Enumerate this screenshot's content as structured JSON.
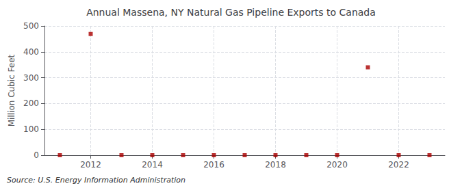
{
  "chart_data": {
    "type": "scatter",
    "title": "Annual Massena, NY Natural Gas Pipeline Exports to Canada",
    "ylabel": "Million Cubic Feet",
    "annotation": "Source: U.S. Energy Information Administration",
    "x": [
      2011,
      2012,
      2013,
      2014,
      2015,
      2016,
      2017,
      2018,
      2019,
      2020,
      2021,
      2022,
      2023
    ],
    "values": [
      0,
      469,
      0,
      0,
      0,
      0,
      0,
      0,
      0,
      0,
      340,
      0,
      0
    ],
    "color": "#aa0000",
    "marker": "square",
    "xlim": [
      2010.5,
      2023.5
    ],
    "ylim": [
      0,
      500
    ],
    "xticks": [
      2012,
      2014,
      2016,
      2018,
      2020,
      2022
    ],
    "yticks": [
      0,
      100,
      200,
      300,
      400,
      500
    ],
    "grid": true
  }
}
